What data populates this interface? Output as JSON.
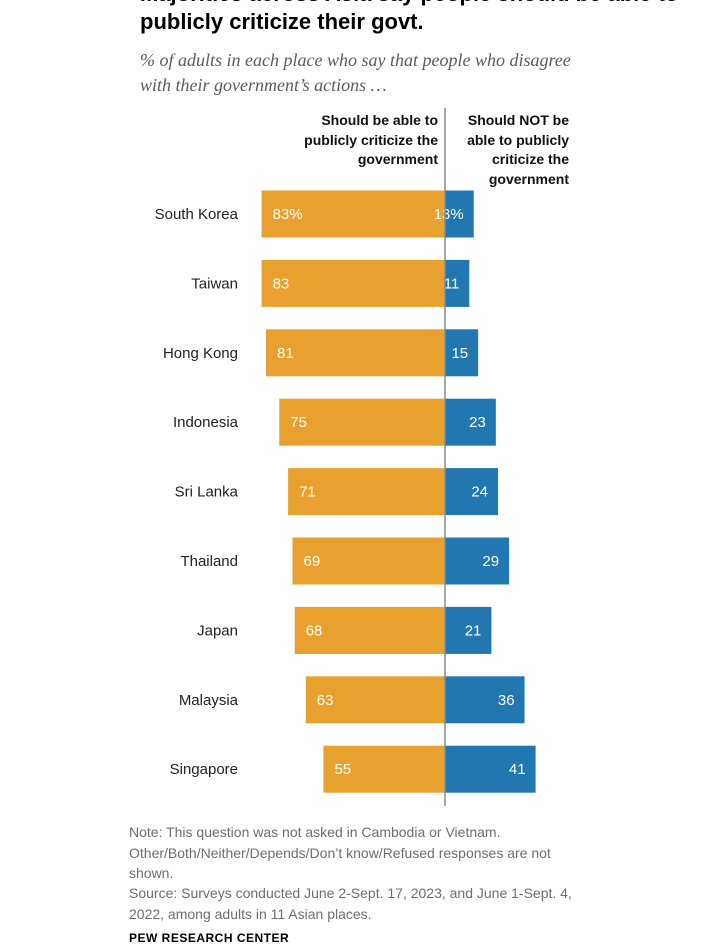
{
  "title": "Majorities across Asia say people should be able to publicly criticize their govt.",
  "subtitle": "% of adults in each place who say that people who disagree with their government’s actions …",
  "footer": {
    "note": "Note: This question was not asked in Cambodia or Vietnam. Other/Both/Neither/Depends/Don’t know/Refused responses are not shown.",
    "source": "Source: Surveys conducted June 2-Sept. 17, 2023, and June 1-Sept. 4, 2022, among adults in 11 Asian places.",
    "brand": "PEW RESEARCH CENTER"
  },
  "chart_data": {
    "type": "bar",
    "orientation": "horizontal-diverging",
    "categories": [
      "South Korea",
      "Taiwan",
      "Hong Kong",
      "Indonesia",
      "Sri Lanka",
      "Thailand",
      "Japan",
      "Malaysia",
      "Singapore"
    ],
    "series": [
      {
        "name": "Should be able to publicly criticize the government",
        "color": "#E8A02F",
        "values": [
          83,
          83,
          81,
          75,
          71,
          69,
          68,
          63,
          55
        ],
        "labels": [
          "83%",
          "83",
          "81",
          "75",
          "71",
          "69",
          "68",
          "63",
          "55"
        ]
      },
      {
        "name": "Should NOT be able to publicly criticize the government",
        "color": "#2277B0",
        "values": [
          13,
          11,
          15,
          23,
          24,
          29,
          21,
          36,
          41
        ],
        "labels": [
          "13%",
          "11",
          "15",
          "23",
          "24",
          "29",
          "21",
          "36",
          "41"
        ]
      }
    ],
    "legend": "column headers above bars",
    "grid": false
  }
}
